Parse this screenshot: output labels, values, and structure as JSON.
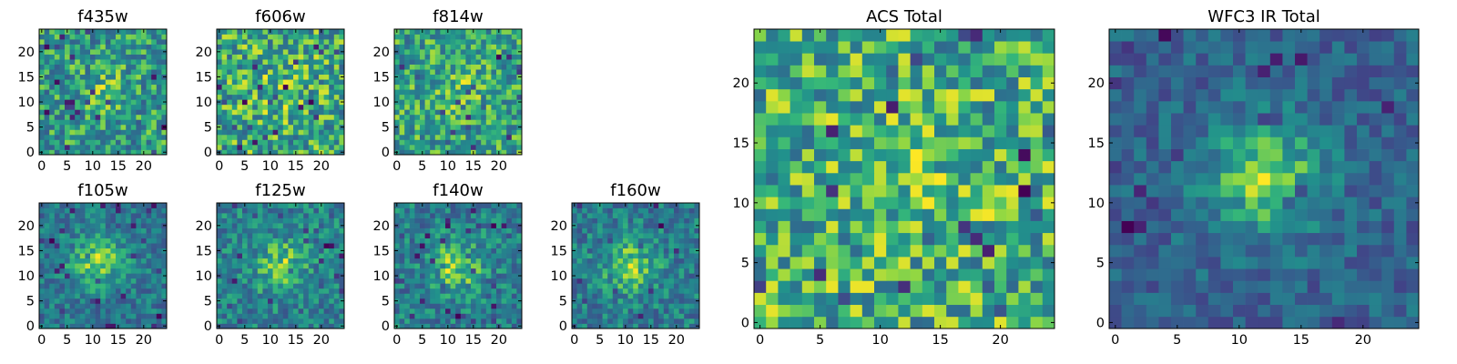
{
  "chart_data": [
    {
      "type": "heatmap",
      "title": "f435w",
      "seed": 11,
      "blob": [
        12,
        12,
        3.5,
        0.15
      ],
      "xticks": [
        0,
        5,
        10,
        15,
        20
      ],
      "yticks": [
        0,
        5,
        10,
        15,
        20
      ],
      "xlim": [
        0,
        25
      ],
      "ylim": [
        0,
        25
      ],
      "colormap": "viridis"
    },
    {
      "type": "heatmap",
      "title": "f606w",
      "seed": 23,
      "blob": [
        12,
        12,
        3.5,
        0.1
      ],
      "xticks": [
        0,
        5,
        10,
        15,
        20
      ],
      "yticks": [
        0,
        5,
        10,
        15,
        20
      ],
      "xlim": [
        0,
        25
      ],
      "ylim": [
        0,
        25
      ],
      "colormap": "viridis"
    },
    {
      "type": "heatmap",
      "title": "f814w",
      "seed": 37,
      "blob": [
        12,
        12,
        3.5,
        0.15
      ],
      "xticks": [
        0,
        5,
        10,
        15,
        20
      ],
      "yticks": [
        0,
        5,
        10,
        15,
        20
      ],
      "xlim": [
        0,
        25
      ],
      "ylim": [
        0,
        25
      ],
      "colormap": "viridis"
    },
    {
      "type": "heatmap",
      "title": "f105w",
      "seed": 41,
      "blob": [
        11,
        13,
        3.5,
        0.6
      ],
      "xticks": [
        0,
        5,
        10,
        15,
        20
      ],
      "yticks": [
        0,
        5,
        10,
        15,
        20
      ],
      "xlim": [
        0,
        25
      ],
      "ylim": [
        0,
        25
      ],
      "colormap": "viridis"
    },
    {
      "type": "heatmap",
      "title": "f125w",
      "seed": 53,
      "blob": [
        12,
        12,
        3.5,
        0.45
      ],
      "xticks": [
        0,
        5,
        10,
        15,
        20
      ],
      "yticks": [
        0,
        5,
        10,
        15,
        20
      ],
      "xlim": [
        0,
        25
      ],
      "ylim": [
        0,
        25
      ],
      "colormap": "viridis"
    },
    {
      "type": "heatmap",
      "title": "f140w",
      "seed": 67,
      "blob": [
        12,
        12,
        3.5,
        0.5
      ],
      "xticks": [
        0,
        5,
        10,
        15,
        20
      ],
      "yticks": [
        0,
        5,
        10,
        15,
        20
      ],
      "xlim": [
        0,
        25
      ],
      "ylim": [
        0,
        25
      ],
      "colormap": "viridis"
    },
    {
      "type": "heatmap",
      "title": "f160w",
      "seed": 79,
      "blob": [
        11,
        12,
        3.5,
        0.5
      ],
      "xticks": [
        0,
        5,
        10,
        15,
        20
      ],
      "yticks": [
        0,
        5,
        10,
        15,
        20
      ],
      "xlim": [
        0,
        25
      ],
      "ylim": [
        0,
        25
      ],
      "colormap": "viridis"
    },
    {
      "type": "heatmap",
      "title": "ACS Total",
      "seed": 97,
      "blob": [
        12,
        12,
        3.5,
        0.15
      ],
      "xticks": [
        0,
        5,
        10,
        15,
        20
      ],
      "yticks": [
        0,
        5,
        10,
        15,
        20
      ],
      "xlim": [
        0,
        25
      ],
      "ylim": [
        0,
        25
      ],
      "colormap": "viridis"
    },
    {
      "type": "heatmap",
      "title": "WFC3 IR Total",
      "seed": 101,
      "blob": [
        12,
        12,
        3.5,
        0.85
      ],
      "xticks": [
        0,
        5,
        10,
        15,
        20
      ],
      "yticks": [
        0,
        5,
        10,
        15,
        20
      ],
      "xlim": [
        0,
        25
      ],
      "ylim": [
        0,
        25
      ],
      "colormap": "viridis"
    }
  ]
}
